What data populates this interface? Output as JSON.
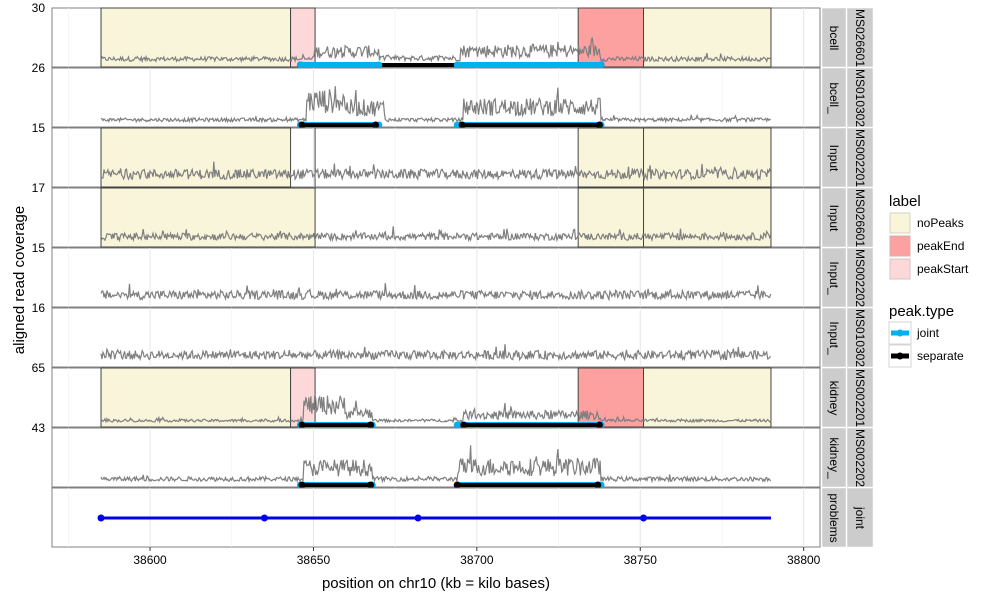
{
  "chart_data": {
    "type": "area",
    "xlabel": "position on chr10 (kb = kilo bases)",
    "ylabel": "aligned read coverage",
    "xlim": [
      38570,
      38805
    ],
    "x_ticks": [
      "38600",
      "38650",
      "38700",
      "38750",
      "38800"
    ],
    "x_tick_values": [
      38600,
      38650,
      38700,
      38750,
      38800
    ],
    "grid": true,
    "coverage_range": [
      38585,
      38790
    ],
    "panels": [
      {
        "strip": "bcell",
        "sample": "MS026601",
        "y_tick": "30",
        "ymax": 30,
        "labels": [
          {
            "label": "noPeaks",
            "start": 38585,
            "end": 38643
          },
          {
            "label": "peakStart",
            "start": 38643,
            "end": 38650.5
          },
          {
            "label": "peakEnd",
            "start": 38731,
            "end": 38751
          },
          {
            "label": "noPeaks",
            "start": 38751,
            "end": 38790
          }
        ],
        "peaks": [
          {
            "type": "separate",
            "start": 38646,
            "end": 38738
          },
          {
            "type": "joint",
            "start": 38646,
            "end": 38670
          },
          {
            "type": "joint",
            "start": 38694,
            "end": 38738
          }
        ],
        "regions": [
          {
            "start": 38650,
            "end": 38670,
            "level": 0.28
          },
          {
            "start": 38670,
            "end": 38695,
            "level": 0.12
          },
          {
            "start": 38695,
            "end": 38738,
            "level": 0.3
          }
        ],
        "base": 0.1
      },
      {
        "strip": "bcell_",
        "sample": "MS010302",
        "y_tick": "26",
        "ymax": 26,
        "labels": [],
        "peaks": [
          {
            "type": "joint",
            "start": 38646,
            "end": 38670
          },
          {
            "type": "separate",
            "start": 38646.5,
            "end": 38669
          },
          {
            "type": "joint",
            "start": 38694,
            "end": 38738
          },
          {
            "type": "separate",
            "start": 38695.5,
            "end": 38737.5
          }
        ],
        "regions": [
          {
            "start": 38648,
            "end": 38660,
            "level": 0.55
          },
          {
            "start": 38660,
            "end": 38672,
            "level": 0.38
          },
          {
            "start": 38696,
            "end": 38738,
            "level": 0.4
          }
        ],
        "base": 0.08
      },
      {
        "strip": "Input",
        "sample": "MS002201",
        "y_tick": "15",
        "ymax": 15,
        "labels": [
          {
            "label": "noPeaks",
            "start": 38585,
            "end": 38643
          },
          {
            "label": "noPeaks",
            "start": 38650.5,
            "end": 38650.6
          },
          {
            "label": "noPeaks",
            "start": 38731,
            "end": 38751
          },
          {
            "label": "noPeaks",
            "start": 38751,
            "end": 38790
          }
        ],
        "peaks": [],
        "regions": [],
        "base": 0.22
      },
      {
        "strip": "Input",
        "sample": "MS026601",
        "y_tick": "17",
        "ymax": 17,
        "labels": [
          {
            "label": "noPeaks",
            "start": 38585,
            "end": 38650.5
          },
          {
            "label": "noPeaks",
            "start": 38731,
            "end": 38751
          },
          {
            "label": "noPeaks",
            "start": 38751,
            "end": 38790
          }
        ],
        "peaks": [],
        "regions": [],
        "base": 0.16
      },
      {
        "strip": "Input_",
        "sample": "MS002202",
        "y_tick": "15",
        "ymax": 15,
        "labels": [],
        "peaks": [],
        "regions": [],
        "base": 0.2
      },
      {
        "strip": "Input_",
        "sample": "MS010302",
        "y_tick": "16",
        "ymax": 16,
        "labels": [],
        "peaks": [],
        "regions": [],
        "base": 0.2
      },
      {
        "strip": "kidney",
        "sample": "MS002201",
        "y_tick": "65",
        "ymax": 65,
        "labels": [
          {
            "label": "noPeaks",
            "start": 38585,
            "end": 38643
          },
          {
            "label": "peakStart",
            "start": 38643,
            "end": 38650.5
          },
          {
            "label": "peakEnd",
            "start": 38731,
            "end": 38751
          },
          {
            "label": "noPeaks",
            "start": 38751,
            "end": 38790
          }
        ],
        "peaks": [
          {
            "type": "joint",
            "start": 38646,
            "end": 38668
          },
          {
            "type": "separate",
            "start": 38646.5,
            "end": 38667.5
          },
          {
            "type": "joint",
            "start": 38694,
            "end": 38738
          },
          {
            "type": "separate",
            "start": 38696,
            "end": 38737.5
          }
        ],
        "regions": [
          {
            "start": 38647,
            "end": 38660,
            "level": 0.45
          },
          {
            "start": 38660,
            "end": 38668,
            "level": 0.25
          },
          {
            "start": 38696,
            "end": 38738,
            "level": 0.2
          }
        ],
        "base": 0.06
      },
      {
        "strip": "kidney_",
        "sample": "MS002202",
        "y_tick": "43",
        "ymax": 43,
        "labels": [],
        "peaks": [
          {
            "type": "joint",
            "start": 38646,
            "end": 38668
          },
          {
            "type": "separate",
            "start": 38646.5,
            "end": 38667.5
          },
          {
            "type": "joint",
            "start": 38694,
            "end": 38738
          },
          {
            "type": "separate",
            "start": 38694,
            "end": 38737
          }
        ],
        "regions": [
          {
            "start": 38647,
            "end": 38668,
            "level": 0.38
          },
          {
            "start": 38694,
            "end": 38738,
            "level": 0.4
          }
        ],
        "base": 0.1
      }
    ],
    "problems_panel": {
      "strip": "problems",
      "group": "joint",
      "line": {
        "start": 38585,
        "end": 38790,
        "color": "#0000ee"
      },
      "points": [
        38585,
        38635,
        38682,
        38751
      ]
    },
    "strip_groups": [
      {
        "label": "MS026601",
        "panels": [
          0
        ]
      },
      {
        "label": "MS010302",
        "panels": [
          1
        ]
      },
      {
        "label": "MS002201",
        "panels": [
          2
        ]
      },
      {
        "label": "MS026601",
        "panels": [
          3
        ]
      },
      {
        "label": "MS002202",
        "panels": [
          4
        ]
      },
      {
        "label": "MS010302",
        "panels": [
          5
        ]
      },
      {
        "label": "MS002201",
        "panels": [
          6
        ]
      },
      {
        "label": "MS002202",
        "panels": [
          7
        ]
      },
      {
        "label": "joint",
        "panels": [
          8
        ]
      }
    ],
    "legend": {
      "position": "right",
      "label_title": "label",
      "label_items": [
        {
          "name": "noPeaks",
          "color": "#f8f5da"
        },
        {
          "name": "peakEnd",
          "color": "#fca0a0"
        },
        {
          "name": "peakStart",
          "color": "#fcd8d8"
        }
      ],
      "peak_title": "peak.type",
      "peak_items": [
        {
          "name": "joint",
          "color": "#00b0f0"
        },
        {
          "name": "separate",
          "color": "#000000"
        }
      ]
    },
    "colors": {
      "coverage": "#7f7f7f",
      "strip_bg": "#cccccc",
      "panel_border": "#808080"
    }
  }
}
